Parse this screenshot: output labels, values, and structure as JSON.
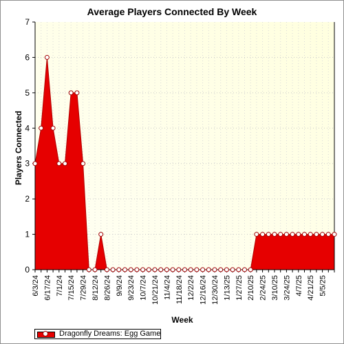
{
  "chart_data": {
    "type": "area",
    "title": "Average Players Connected By Week",
    "xlabel": "Week",
    "ylabel": "Players Connected",
    "ylim": [
      0,
      7
    ],
    "yticks": [
      "0",
      "1",
      "2",
      "3",
      "4",
      "5",
      "6",
      "7"
    ],
    "grid": true,
    "legend_position": "bottom-left",
    "x_tick_labels": [
      "6/3/24",
      "6/17/24",
      "7/1/24",
      "7/15/24",
      "7/29/24",
      "8/12/24",
      "8/26/24",
      "9/9/24",
      "9/23/24",
      "10/7/24",
      "10/21/24",
      "11/4/24",
      "11/18/24",
      "12/2/24",
      "12/16/24",
      "12/30/24",
      "1/13/25",
      "1/27/25",
      "2/10/25",
      "2/24/25",
      "3/10/25",
      "3/24/25",
      "4/7/25",
      "4/21/25",
      "5/5/25"
    ],
    "series": [
      {
        "name": "Dragonfly Dreams: Egg Game",
        "color": "#e60000",
        "values": [
          3,
          4,
          6,
          4,
          3,
          3,
          5,
          5,
          3,
          0,
          0,
          1,
          0,
          0,
          0,
          0,
          0,
          0,
          0,
          0,
          0,
          0,
          0,
          0,
          0,
          0,
          0,
          0,
          0,
          0,
          0,
          0,
          0,
          0,
          0,
          0,
          0,
          1,
          1,
          1,
          1,
          1,
          1,
          1,
          1,
          1,
          1,
          1,
          1,
          1,
          1
        ]
      }
    ]
  },
  "colors": {
    "plot_bg_top": "#ffffdf",
    "plot_bg_bottom": "#fffff4",
    "series_fill": "#e60000",
    "marker_stroke": "#a00000"
  }
}
